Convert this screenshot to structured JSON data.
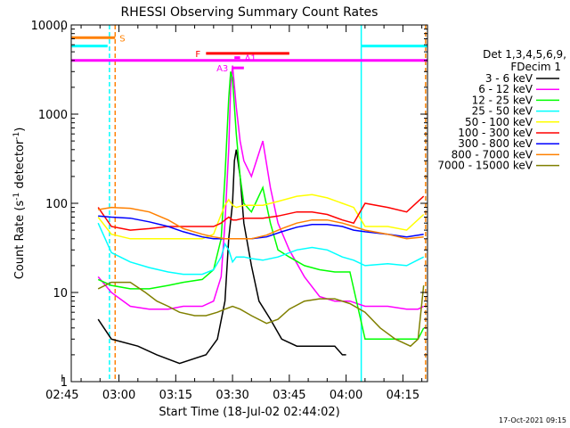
{
  "chart_data": {
    "type": "line",
    "title": "RHESSI Observing Summary Count Rates",
    "xlabel": "Start Time (18-Jul-02 02:44:02)",
    "ylabel_main": "Count Rate (s",
    "ylabel_sup1": "-1",
    "ylabel_mid": " detector",
    "ylabel_sup2": "-1",
    "ylabel_end": ")",
    "yscale": "log",
    "ylim": [
      1,
      10000
    ],
    "xlim_minutes": [
      2.4,
      96.5
    ],
    "x_ticks": [
      {
        "label": "02:45",
        "min": 0
      },
      {
        "label": "03:00",
        "min": 15
      },
      {
        "label": "03:15",
        "min": 30
      },
      {
        "label": "03:30",
        "min": 45
      },
      {
        "label": "03:45",
        "min": 60
      },
      {
        "label": "04:00",
        "min": 75
      },
      {
        "label": "04:15",
        "min": 90
      }
    ],
    "y_ticks": [
      {
        "label": "1",
        "value": 1
      },
      {
        "label": "10",
        "value": 10
      },
      {
        "label": "100",
        "value": 100
      },
      {
        "label": "1000",
        "value": 1000
      },
      {
        "label": "10000",
        "value": 10000
      }
    ],
    "legend": {
      "placement": "right",
      "header1": "Det 1,3,4,5,6,9,",
      "header2": "FDecim 1"
    },
    "series": [
      {
        "name": "3 - 6 keV",
        "color": "#000000",
        "x": [
          9.5,
          13,
          20,
          25,
          31,
          38,
          41,
          43,
          44,
          45,
          45.5,
          46,
          47,
          48,
          50,
          52,
          55,
          58,
          62,
          66,
          70,
          72,
          74,
          75
        ],
        "y": [
          5,
          3,
          2.5,
          2,
          1.6,
          2,
          3,
          8,
          40,
          100,
          300,
          400,
          200,
          60,
          20,
          8,
          5,
          3,
          2.5,
          2.5,
          2.5,
          2.5,
          2,
          2
        ]
      },
      {
        "name": "6 - 12 keV",
        "color": "#ff00ff",
        "x": [
          9.5,
          13,
          18,
          23,
          28,
          32,
          37,
          40,
          42,
          43,
          44,
          44.5,
          45,
          46,
          47,
          48,
          50,
          53,
          55,
          57,
          60,
          64,
          68,
          72,
          76,
          80,
          86,
          91,
          94,
          95.5
        ],
        "y": [
          15,
          10,
          7,
          6.5,
          6.5,
          7,
          7,
          8,
          15,
          60,
          400,
          2000,
          3500,
          1200,
          500,
          300,
          200,
          500,
          150,
          60,
          30,
          15,
          9,
          8,
          8,
          7,
          7,
          6.5,
          6.5,
          7
        ]
      },
      {
        "name": "12 - 25 keV",
        "color": "#00ff00",
        "x": [
          9.5,
          13,
          18,
          23,
          28,
          32,
          37,
          40,
          42,
          43,
          44,
          44.5,
          45,
          46,
          47,
          48,
          50,
          53,
          55,
          57,
          60,
          64,
          68,
          72,
          76,
          80,
          86,
          91,
          94,
          95.5
        ],
        "y": [
          14,
          12,
          11,
          11,
          12,
          13,
          14,
          18,
          40,
          200,
          1500,
          3000,
          2500,
          600,
          200,
          100,
          80,
          150,
          60,
          30,
          25,
          20,
          18,
          17,
          17,
          3,
          3,
          3,
          3,
          4
        ]
      },
      {
        "name": "25 - 50 keV",
        "color": "#00ffff",
        "x": [
          9.5,
          13,
          18,
          23,
          28,
          32,
          37,
          40,
          42,
          43,
          44,
          45,
          46,
          48,
          50,
          53,
          57,
          62,
          66,
          70,
          74,
          77,
          80,
          86,
          91,
          95.5
        ],
        "y": [
          60,
          28,
          22,
          19,
          17,
          16,
          16,
          18,
          25,
          35,
          30,
          22,
          25,
          25,
          24,
          23,
          25,
          30,
          32,
          30,
          25,
          23,
          20,
          21,
          20,
          25
        ]
      },
      {
        "name": "50 - 100 keV",
        "color": "#ffff00",
        "x": [
          9.5,
          13,
          18,
          23,
          28,
          32,
          37,
          40,
          42,
          43,
          44,
          45,
          46,
          48,
          50,
          53,
          57,
          62,
          66,
          70,
          74,
          77,
          80,
          86,
          91,
          95.5
        ],
        "y": [
          70,
          45,
          40,
          40,
          40,
          40,
          40,
          45,
          75,
          95,
          110,
          95,
          90,
          95,
          95,
          95,
          105,
          120,
          125,
          115,
          100,
          90,
          55,
          55,
          50,
          75
        ]
      },
      {
        "name": "100 - 300 keV",
        "color": "#ff0000",
        "x": [
          9.5,
          13,
          18,
          23,
          28,
          32,
          37,
          40,
          42,
          43,
          44,
          45,
          46,
          48,
          50,
          53,
          57,
          62,
          66,
          70,
          74,
          77,
          80,
          86,
          91,
          95.5
        ],
        "y": [
          90,
          55,
          50,
          52,
          55,
          55,
          55,
          55,
          60,
          65,
          70,
          65,
          65,
          68,
          68,
          68,
          72,
          80,
          80,
          75,
          65,
          60,
          100,
          90,
          80,
          120
        ]
      },
      {
        "name": "300 - 800 keV",
        "color": "#0000ff",
        "x": [
          9.5,
          13,
          18,
          23,
          28,
          32,
          37,
          40,
          43,
          46,
          50,
          54,
          58,
          62,
          66,
          70,
          74,
          77,
          80,
          86,
          91,
          95.5
        ],
        "y": [
          72,
          70,
          68,
          62,
          55,
          48,
          42,
          40,
          40,
          40,
          40,
          42,
          48,
          54,
          58,
          58,
          55,
          50,
          48,
          45,
          42,
          45
        ]
      },
      {
        "name": "800 - 7000 keV",
        "color": "#ff8000",
        "x": [
          9.5,
          13,
          18,
          23,
          28,
          32,
          37,
          40,
          43,
          46,
          50,
          54,
          58,
          62,
          66,
          70,
          74,
          77,
          80,
          86,
          91,
          95.5
        ],
        "y": [
          85,
          90,
          88,
          80,
          65,
          52,
          45,
          42,
          40,
          40,
          40,
          44,
          52,
          60,
          65,
          65,
          60,
          55,
          50,
          45,
          40,
          42
        ]
      },
      {
        "name": "7000 - 15000 keV",
        "color": "#808000",
        "x": [
          9.5,
          13,
          18,
          22,
          25,
          28,
          31,
          35,
          38,
          41,
          43,
          45,
          47,
          50,
          54,
          57,
          60,
          64,
          68,
          72,
          76,
          80,
          84,
          88,
          92,
          94,
          95.5
        ],
        "y": [
          11,
          13,
          13,
          10,
          8,
          7,
          6,
          5.5,
          5.5,
          6,
          6.5,
          7,
          6.5,
          5.5,
          4.5,
          5,
          6.5,
          8,
          8.5,
          8.5,
          7.5,
          6,
          4,
          3,
          2.5,
          3,
          12
        ]
      }
    ],
    "flag_bars": [
      {
        "label": "",
        "color": "#ff00ff",
        "y": 4000,
        "x_start": 2.4,
        "x_end": 96.5
      },
      {
        "label": "S",
        "color": "#ff8000",
        "y": 7200,
        "x_start": 2.4,
        "x_end": 14
      },
      {
        "label": "",
        "color": "#00ffff",
        "y": 5800,
        "x_start": 2.4,
        "x_end": 12
      },
      {
        "label": "",
        "color": "#00ffff",
        "y": 5800,
        "x_start": 79,
        "x_end": 96.5
      },
      {
        "label": "F",
        "color": "#ff0000",
        "y": 4800,
        "x_start": 38,
        "x_end": 60
      },
      {
        "label": "A1",
        "color": "#ff00ff",
        "y": 4300,
        "x_start": 45.5,
        "x_end": 47
      },
      {
        "label": "A3",
        "color": "#ff00ff",
        "y": 3300,
        "x_start": 45,
        "x_end": 48
      }
    ],
    "vlines": [
      {
        "color": "#00ffff",
        "min": 12.5,
        "dashed": true
      },
      {
        "color": "#00ffff",
        "min": 79,
        "dashed": false
      },
      {
        "color": "#ff8000",
        "min": 14,
        "dashed": true
      },
      {
        "color": "#ff8000",
        "min": 96,
        "dashed": true
      }
    ],
    "grid": false
  },
  "footer": {
    "timestamp": "17-Oct-2021 09:15"
  }
}
